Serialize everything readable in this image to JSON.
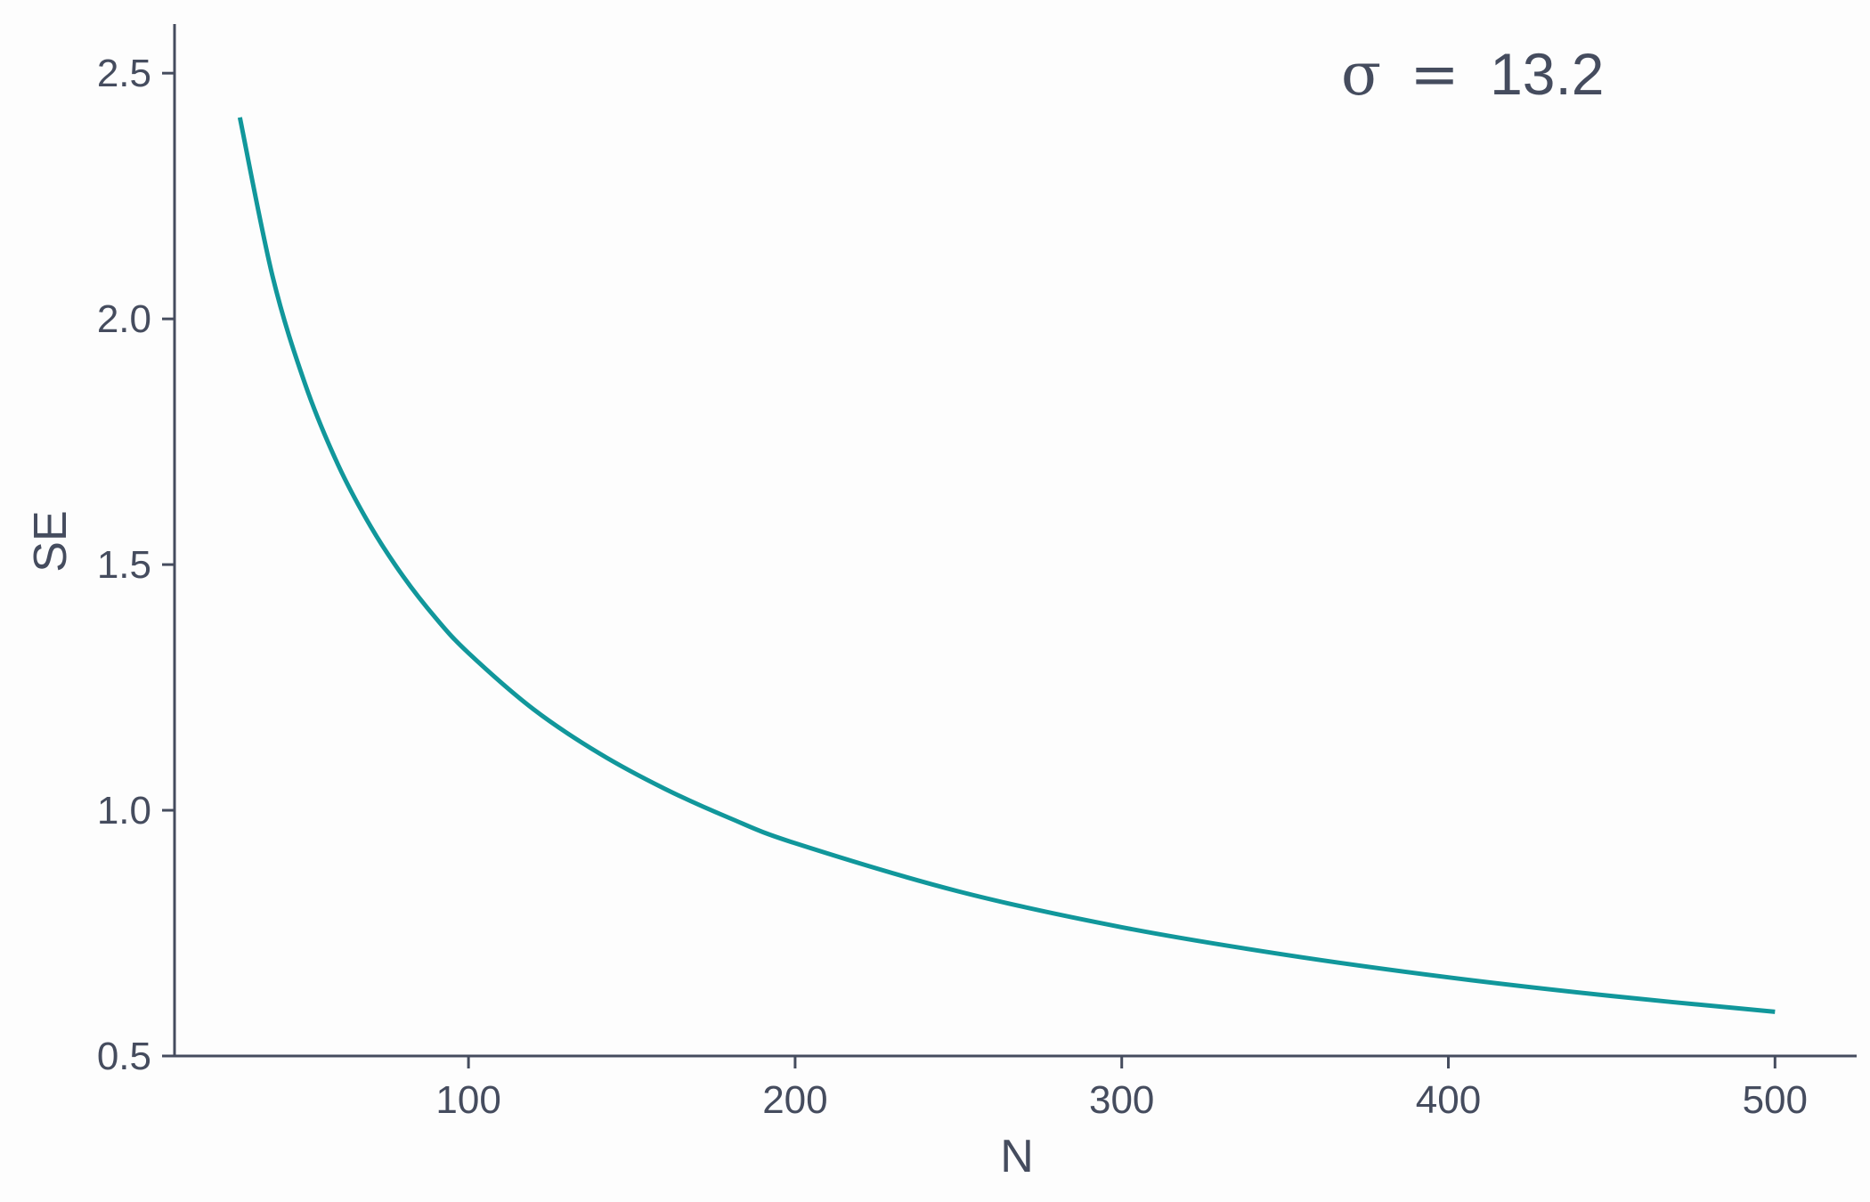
{
  "chart_data": {
    "type": "line",
    "title": "",
    "xlabel": "N",
    "ylabel": "SE",
    "xlim": [
      10,
      525
    ],
    "ylim": [
      0.5,
      2.6
    ],
    "x_ticks": [
      100,
      200,
      300,
      400,
      500
    ],
    "y_ticks": [
      0.5,
      1.0,
      1.5,
      2.0,
      2.5
    ],
    "x_tick_labels": [
      "100",
      "200",
      "300",
      "400",
      "500"
    ],
    "y_tick_labels": [
      "0.5",
      "1.0",
      "1.5",
      "2.0",
      "2.5"
    ],
    "grid": false,
    "legend": "none",
    "annotation": {
      "symbol": "σ",
      "operator": "=",
      "value": "13.2"
    },
    "series": [
      {
        "color": "#11979b",
        "x": [
          30,
          40,
          50,
          60,
          70,
          80,
          90,
          100,
          120,
          140,
          160,
          180,
          200,
          250,
          300,
          350,
          400,
          450,
          500
        ],
        "y": [
          2.41,
          2.087,
          1.867,
          1.704,
          1.578,
          1.476,
          1.391,
          1.32,
          1.205,
          1.116,
          1.044,
          0.984,
          0.933,
          0.835,
          0.762,
          0.706,
          0.66,
          0.622,
          0.59
        ]
      }
    ]
  }
}
